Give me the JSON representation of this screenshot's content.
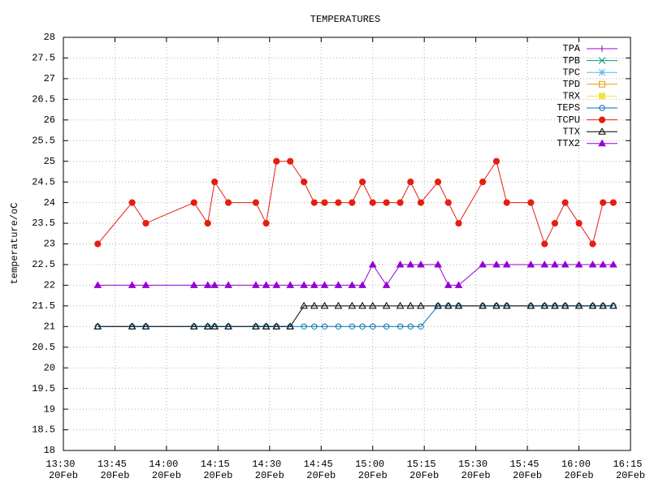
{
  "chart_data": {
    "type": "line",
    "title": "TEMPERATURES",
    "y_label": "temperature/oC",
    "x": [
      "13:40",
      "13:50",
      "13:54",
      "14:08",
      "14:12",
      "14:14",
      "14:18",
      "14:26",
      "14:29",
      "14:32",
      "14:36",
      "14:40",
      "14:43",
      "14:46",
      "14:50",
      "14:54",
      "14:57",
      "15:00",
      "15:04",
      "15:08",
      "15:11",
      "15:14",
      "15:19",
      "15:22",
      "15:25",
      "15:32",
      "15:36",
      "15:39",
      "15:46",
      "15:50",
      "15:53",
      "15:56",
      "16:00",
      "16:04",
      "16:07",
      "16:10"
    ],
    "xlim": [
      "13:30",
      "16:15"
    ],
    "xticks": [
      {
        "value": "13:30",
        "label": "13:30 20Feb"
      },
      {
        "value": "13:45",
        "label": "13:45 20Feb"
      },
      {
        "value": "14:00",
        "label": "14:00 20Feb"
      },
      {
        "value": "14:15",
        "label": "14:15 20Feb"
      },
      {
        "value": "14:30",
        "label": "14:30 20Feb"
      },
      {
        "value": "14:45",
        "label": "14:45 20Feb"
      },
      {
        "value": "15:00",
        "label": "15:00 20Feb"
      },
      {
        "value": "15:15",
        "label": "15:15 20Feb"
      },
      {
        "value": "15:30",
        "label": "15:30 20Feb"
      },
      {
        "value": "15:45",
        "label": "15:45 20Feb"
      },
      {
        "value": "16:00",
        "label": "16:00 20Feb"
      },
      {
        "value": "16:15",
        "label": "16:15 20Feb"
      }
    ],
    "ylim": [
      18,
      28
    ],
    "yticks": [
      18,
      18.5,
      19,
      19.5,
      20,
      20.5,
      21,
      21.5,
      22,
      22.5,
      23,
      23.5,
      24,
      24.5,
      25,
      25.5,
      26,
      26.5,
      27,
      27.5,
      28
    ],
    "grid": true,
    "legend": "top-right",
    "series": [
      {
        "name": "TPA",
        "color": "#9400d3",
        "marker": "plus",
        "values": [
          null,
          null,
          null,
          null,
          null,
          null,
          null,
          null,
          null,
          null,
          null,
          null,
          null,
          null,
          null,
          null,
          null,
          null,
          null,
          null,
          null,
          null,
          null,
          null,
          null,
          null,
          null,
          null,
          null,
          null,
          null,
          null,
          null,
          null,
          null,
          null
        ]
      },
      {
        "name": "TPB",
        "color": "#009e73",
        "marker": "cross",
        "values": [
          null,
          null,
          null,
          null,
          null,
          null,
          null,
          null,
          null,
          null,
          null,
          null,
          null,
          null,
          null,
          null,
          null,
          null,
          null,
          null,
          null,
          null,
          null,
          null,
          null,
          null,
          null,
          null,
          null,
          null,
          null,
          null,
          null,
          null,
          null,
          null
        ]
      },
      {
        "name": "TPC",
        "color": "#56b4e9",
        "marker": "star",
        "values": [
          null,
          null,
          null,
          null,
          null,
          null,
          null,
          null,
          null,
          null,
          null,
          null,
          null,
          null,
          null,
          null,
          null,
          null,
          null,
          null,
          null,
          null,
          null,
          null,
          null,
          null,
          null,
          null,
          null,
          null,
          null,
          null,
          null,
          null,
          null,
          null
        ]
      },
      {
        "name": "TPD",
        "color": "#e69f00",
        "marker": "square",
        "values": [
          null,
          null,
          null,
          null,
          null,
          null,
          null,
          null,
          null,
          null,
          null,
          null,
          null,
          null,
          null,
          null,
          null,
          null,
          null,
          null,
          null,
          null,
          null,
          null,
          null,
          null,
          null,
          null,
          null,
          null,
          null,
          null,
          null,
          null,
          null,
          null
        ]
      },
      {
        "name": "TRX",
        "color": "#f0e442",
        "marker": "filled-square",
        "values": [
          null,
          null,
          null,
          null,
          null,
          null,
          null,
          null,
          null,
          null,
          null,
          null,
          null,
          null,
          null,
          null,
          null,
          null,
          null,
          null,
          null,
          null,
          null,
          null,
          null,
          null,
          null,
          null,
          null,
          null,
          null,
          null,
          null,
          null,
          null,
          null
        ]
      },
      {
        "name": "TEPS",
        "color": "#0072b2",
        "marker": "circle",
        "values": [
          21,
          21,
          21,
          21,
          21,
          21,
          21,
          21,
          21,
          21,
          21,
          21,
          21,
          21,
          21,
          21,
          21,
          21,
          21,
          21,
          21,
          21,
          21.5,
          21.5,
          21.5,
          21.5,
          21.5,
          21.5,
          21.5,
          21.5,
          21.5,
          21.5,
          21.5,
          21.5,
          21.5,
          21.5
        ]
      },
      {
        "name": "TCPU",
        "color": "#e51e10",
        "marker": "filled-circle",
        "values": [
          23,
          24,
          23.5,
          24,
          23.5,
          24.5,
          24,
          24,
          23.5,
          25,
          25,
          24.5,
          24,
          24,
          24,
          24,
          24.5,
          24,
          24,
          24,
          24.5,
          24,
          24.5,
          24,
          23.5,
          24.5,
          25,
          24,
          24,
          23,
          23.5,
          24,
          23.5,
          23,
          24,
          24
        ]
      },
      {
        "name": "TTX",
        "color": "#000000",
        "marker": "triangle",
        "values": [
          21,
          21,
          21,
          21,
          21,
          21,
          21,
          21,
          21,
          21,
          21,
          21.5,
          21.5,
          21.5,
          21.5,
          21.5,
          21.5,
          21.5,
          21.5,
          21.5,
          21.5,
          21.5,
          21.5,
          21.5,
          21.5,
          21.5,
          21.5,
          21.5,
          21.5,
          21.5,
          21.5,
          21.5,
          21.5,
          21.5,
          21.5,
          21.5
        ]
      },
      {
        "name": "TTX2",
        "color": "#9400d3",
        "marker": "filled-triangle",
        "values": [
          22,
          22,
          22,
          22,
          22,
          22,
          22,
          22,
          22,
          22,
          22,
          22,
          22,
          22,
          22,
          22,
          22,
          22.5,
          22,
          22.5,
          22.5,
          22.5,
          22.5,
          22,
          22,
          22.5,
          22.5,
          22.5,
          22.5,
          22.5,
          22.5,
          22.5,
          22.5,
          22.5,
          22.5,
          22.5
        ]
      }
    ]
  }
}
